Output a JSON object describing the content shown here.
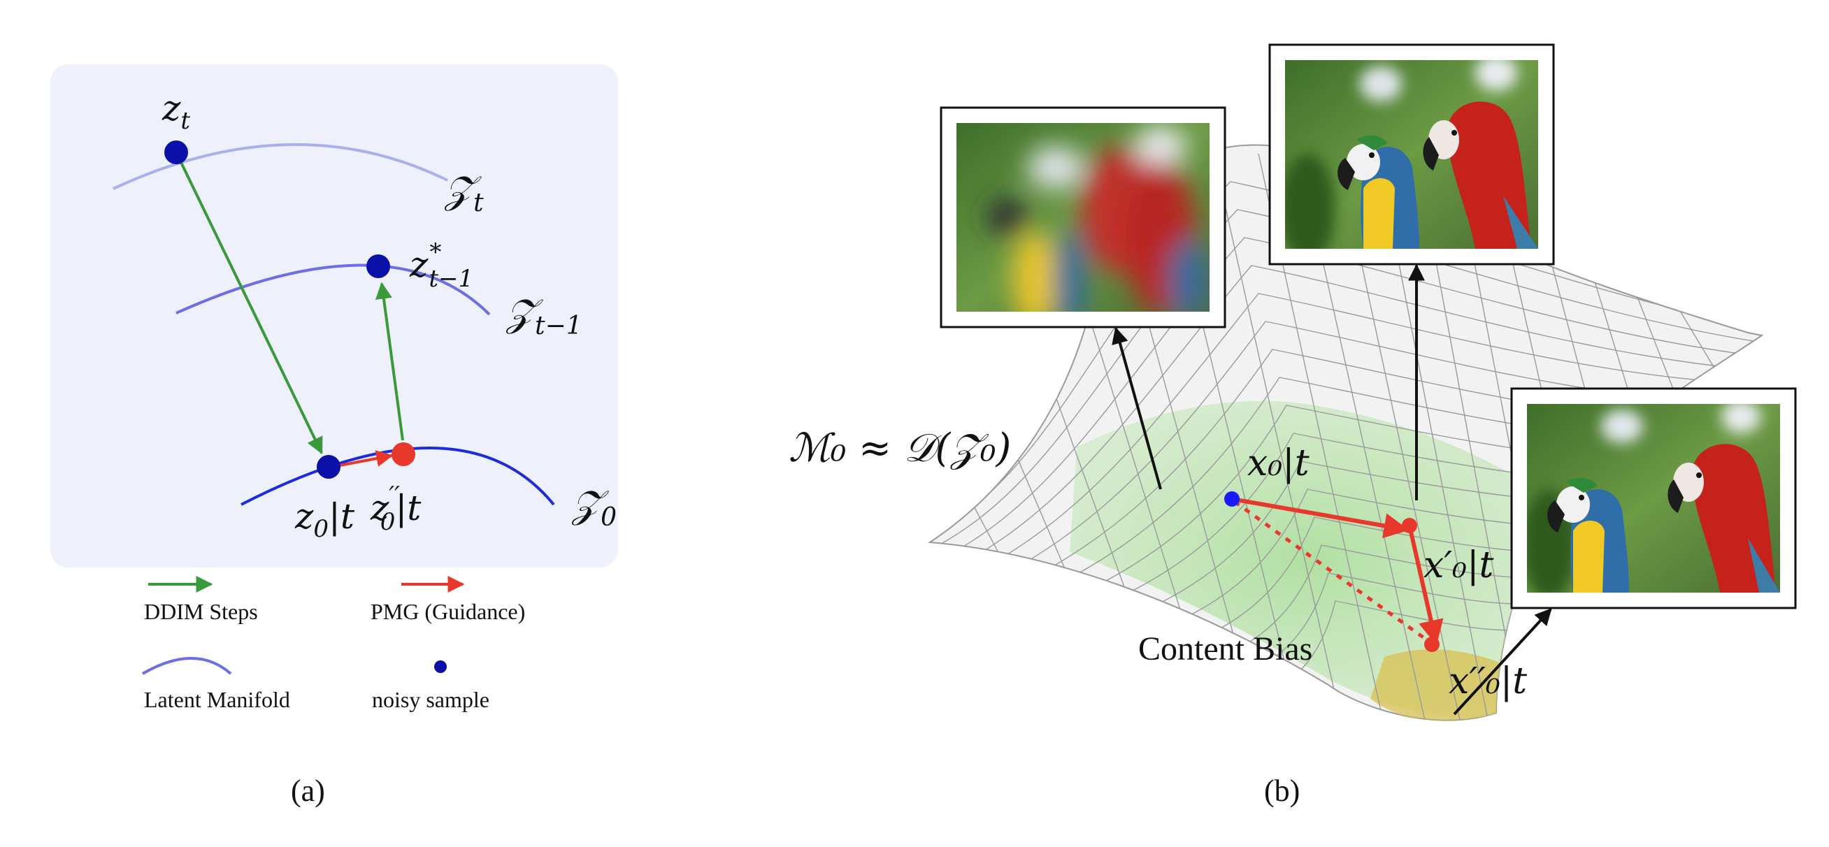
{
  "panel_a": {
    "caption": "(a)",
    "points": {
      "zt": "z",
      "zt_sub": "t",
      "zstar": "z",
      "zstar_sup": "*",
      "zstar_sub": "t−1",
      "z0t": "z",
      "z0t_sub": "0",
      "z0t_cond": "|t",
      "z0pp": "z",
      "z0pp_sup": "′′",
      "z0pp_sub": "0",
      "z0pp_cond": "|t"
    },
    "manifolds": {
      "Zt": "𝒵",
      "Zt_sub": "t",
      "Zt1": "𝒵",
      "Zt1_sub": "t−1",
      "Z0": "𝒵",
      "Z0_sub": "0"
    },
    "legend": {
      "ddim": "DDIM Steps",
      "pmg": "PMG (Guidance)",
      "manifold": "Latent Manifold",
      "noisy": "noisy sample"
    },
    "colors": {
      "panel_bg": "#eef0fb",
      "green": "#3a9a3a",
      "red": "#e8372b",
      "dark_blue": "#0b11a8",
      "blue_curve": "#1c2bdc",
      "mid_curve": "#6c6ee8",
      "light_curve": "#aab0ee"
    }
  },
  "panel_b": {
    "caption": "(b)",
    "manifold_label": "ℳ₀ ≈ 𝒟(𝒵₀)",
    "content_bias": "Content Bias",
    "points": {
      "x0t": "x₀|t",
      "x0p": "x′₀|t",
      "x0pp": "x′′₀|t"
    },
    "images": {
      "blurry": "blurry-parrots-image",
      "sharp": "sharp-parrots-image",
      "guided": "guided-parrots-image"
    },
    "colors": {
      "mesh": "#9a9a9a",
      "green_region": "#9ad48a",
      "yellow_region": "#d8c050",
      "red": "#e8372b",
      "blue_dot": "#1a1aff"
    }
  }
}
